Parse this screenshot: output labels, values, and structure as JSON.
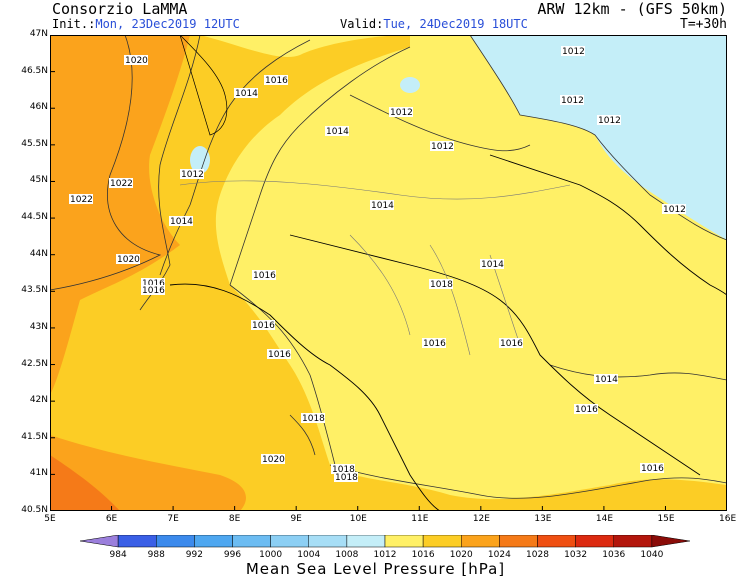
{
  "header": {
    "organization": "Consorzio LaMMA",
    "model": "ARW 12km - (GFS 50km)",
    "init_label": "Init.:",
    "init_value": "Mon, 23Dec2019 12UTC",
    "valid_label": "Valid:",
    "valid_value": "Tue, 24Dec2019 18UTC",
    "step": "T=+30h"
  },
  "map": {
    "lat_labels": [
      "47N",
      "46.5N",
      "46N",
      "45.5N",
      "45N",
      "44.5N",
      "44N",
      "43.5N",
      "43N",
      "42.5N",
      "42N",
      "41.5N",
      "41N",
      "40.5N"
    ],
    "lon_labels": [
      "5E",
      "6E",
      "7E",
      "8E",
      "9E",
      "10E",
      "11E",
      "12E",
      "13E",
      "14E",
      "15E",
      "16E"
    ],
    "isobar_labels": [
      "1012",
      "1012",
      "1012",
      "1012",
      "1012",
      "1012",
      "1012",
      "1014",
      "1014",
      "1014",
      "1014",
      "1014",
      "1014",
      "1016",
      "1016",
      "1016",
      "1016",
      "1016",
      "1016",
      "1016",
      "1016",
      "1016",
      "1016",
      "1018",
      "1018",
      "1018",
      "1018",
      "1020",
      "1020",
      "1020",
      "1022",
      "1022"
    ]
  },
  "colorbar": {
    "title": "Mean Sea Level Pressure [hPa]",
    "levels": [
      "984",
      "988",
      "992",
      "996",
      "1000",
      "1004",
      "1008",
      "1012",
      "1016",
      "1020",
      "1024",
      "1028",
      "1032",
      "1036",
      "1040"
    ],
    "colors": [
      "#9b7fdc",
      "#3a5fe6",
      "#3c8aec",
      "#4ea7f0",
      "#6cbcf2",
      "#8ccff4",
      "#a7def6",
      "#c4eef8",
      "#fff066",
      "#fccd25",
      "#fba31c",
      "#f57a18",
      "#ef4f12",
      "#dc2a10",
      "#b3160c",
      "#8a0c08"
    ]
  },
  "colors": {
    "accent_blue": "#2a4fd8"
  }
}
